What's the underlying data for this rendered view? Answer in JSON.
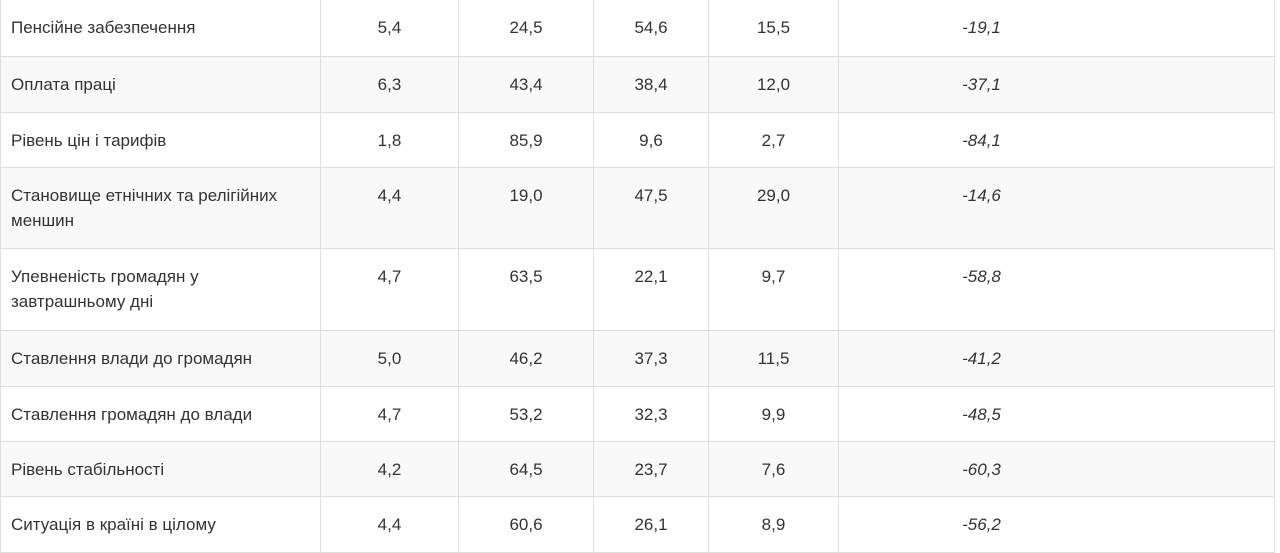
{
  "table": {
    "rows": [
      {
        "label": "Пенсійне забезпечення",
        "c1": "5,4",
        "c2": "24,5",
        "c3": "54,6",
        "c4": "15,5",
        "balance": "-19,1"
      },
      {
        "label": "Оплата праці",
        "c1": "6,3",
        "c2": "43,4",
        "c3": "38,4",
        "c4": "12,0",
        "balance": "-37,1"
      },
      {
        "label": "Рівень цін і тарифів",
        "c1": "1,8",
        "c2": "85,9",
        "c3": "9,6",
        "c4": "2,7",
        "balance": "-84,1"
      },
      {
        "label": "Становище етнічних та релігійних меншин",
        "c1": "4,4",
        "c2": "19,0",
        "c3": "47,5",
        "c4": "29,0",
        "balance": "-14,6"
      },
      {
        "label": "Упевненість громадян у завтрашньому дні",
        "c1": "4,7",
        "c2": "63,5",
        "c3": "22,1",
        "c4": "9,7",
        "balance": "-58,8"
      },
      {
        "label": "Ставлення влади до громадян",
        "c1": "5,0",
        "c2": "46,2",
        "c3": "37,3",
        "c4": "11,5",
        "balance": "-41,2"
      },
      {
        "label": "Ставлення громадян до влади",
        "c1": "4,7",
        "c2": "53,2",
        "c3": "32,3",
        "c4": "9,9",
        "balance": "-48,5"
      },
      {
        "label": "Рівень стабільності",
        "c1": "4,2",
        "c2": "64,5",
        "c3": "23,7",
        "c4": "7,6",
        "balance": "-60,3"
      },
      {
        "label": "Ситуація в країні в цілому",
        "c1": "4,4",
        "c2": "60,6",
        "c3": "26,1",
        "c4": "8,9",
        "balance": "-56,2"
      }
    ]
  }
}
